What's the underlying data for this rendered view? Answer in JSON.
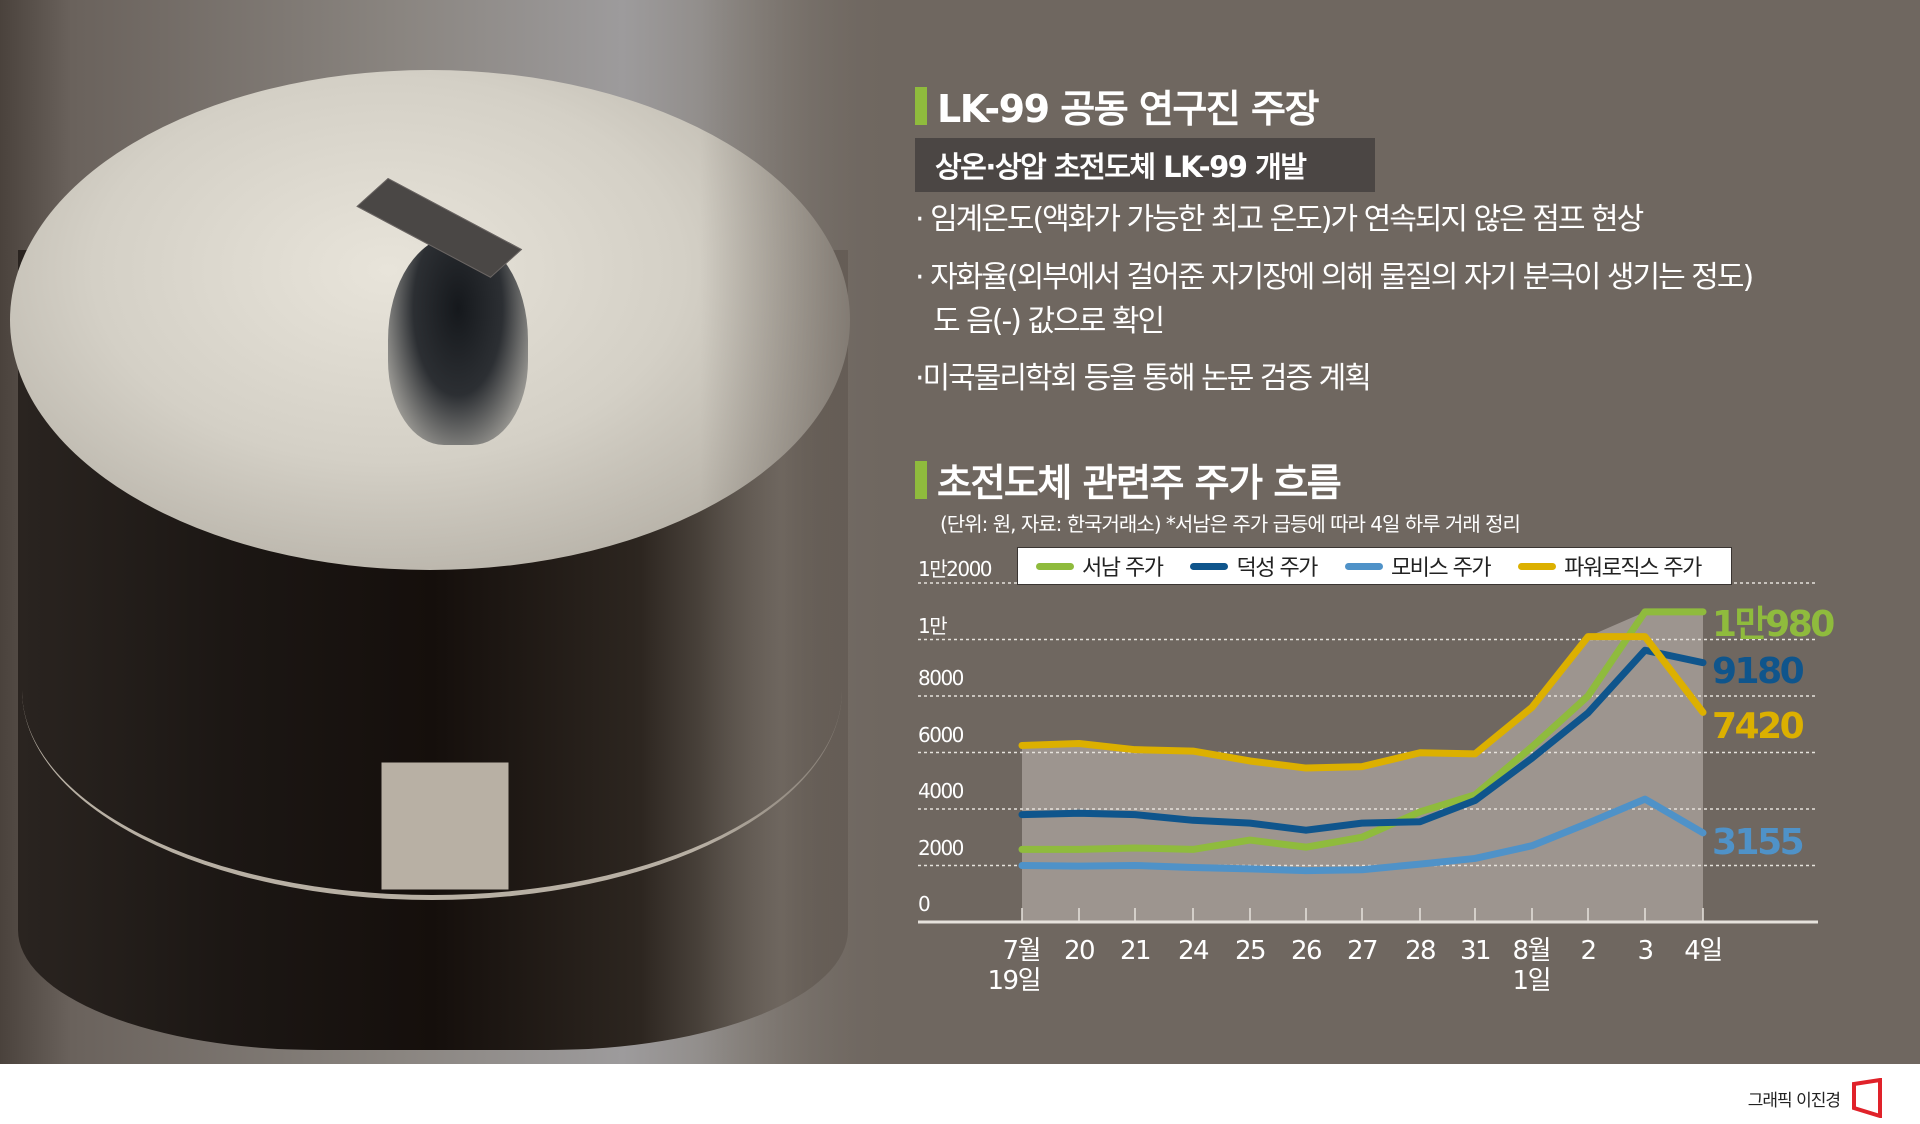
{
  "section1": {
    "title": "LK-99 공동 연구진 주장",
    "subhead": "상온·상압 초전도체 LK-99 개발",
    "bullets": [
      "· 임계온도(액화가 가능한 최고 온도)가 연속되지 않은 점프 현상",
      "· 자화율(외부에서 걸어준 자기장에 의해 물질의 자기 분극이 생기는 정도)",
      "  도 음(-) 값으로 확인",
      "·미국물리학회 등을 통해 논문 검증 계획"
    ]
  },
  "section2": {
    "title": "초전도체 관련주 주가 흐름",
    "note": "(단위: 원, 자료: 한국거래소)  *서남은 주가 급등에 따라 4일 하루 거래 정리"
  },
  "footer": {
    "credit": "그래픽 이진경"
  },
  "colors": {
    "background": "#6f6760",
    "accent_bar": "#8fbb3d",
    "plot_fill": "#9d958f",
    "seonam": "#8fbb3d",
    "deoksung": "#0f558c",
    "mobis": "#4f92c8",
    "powerlogics": "#dcb000",
    "logo": "#e0222a"
  },
  "chart_data": {
    "type": "line",
    "title": "초전도체 관련주 주가 흐름",
    "subtitle": "(단위: 원, 자료: 한국거래소) *서남은 주가 급등에 따라 4일 하루 거래 정리",
    "xlabel": "",
    "ylabel": "원",
    "categories": [
      "7월 19일",
      "20",
      "21",
      "24",
      "25",
      "26",
      "27",
      "28",
      "31",
      "8월 1일",
      "2",
      "3",
      "4일"
    ],
    "x_tick_lines": [
      [
        "7월",
        "19일"
      ],
      [
        "20"
      ],
      [
        "21"
      ],
      [
        "24"
      ],
      [
        "25"
      ],
      [
        "26"
      ],
      [
        "27"
      ],
      [
        "28"
      ],
      [
        "31"
      ],
      [
        "8월",
        "1일"
      ],
      [
        "2"
      ],
      [
        "3"
      ],
      [
        "4일"
      ]
    ],
    "y_ticks": [
      {
        "value": 0,
        "label": "0"
      },
      {
        "value": 2000,
        "label": "2000"
      },
      {
        "value": 4000,
        "label": "4000"
      },
      {
        "value": 6000,
        "label": "6000"
      },
      {
        "value": 8000,
        "label": "8000"
      },
      {
        "value": 10000,
        "label": "1만"
      },
      {
        "value": 12000,
        "label": "1만2000"
      }
    ],
    "ylim": [
      0,
      12000
    ],
    "grid": "horizontal dotted",
    "legend_position": "top",
    "series": [
      {
        "name": "서남 주가",
        "key": "seonam",
        "values": [
          2570,
          2570,
          2620,
          2570,
          2900,
          2650,
          3000,
          3900,
          4500,
          6200,
          8000,
          10980,
          10980
        ],
        "end_label": "1만980"
      },
      {
        "name": "덕성 주가",
        "key": "deoksung",
        "values": [
          3800,
          3850,
          3800,
          3600,
          3500,
          3250,
          3500,
          3550,
          4300,
          5800,
          7400,
          9620,
          9180
        ],
        "end_label": "9180"
      },
      {
        "name": "모비스 주가",
        "key": "mobis",
        "values": [
          2000,
          1980,
          2000,
          1930,
          1880,
          1820,
          1850,
          2050,
          2250,
          2700,
          3500,
          4350,
          3155
        ],
        "end_label": "3155"
      },
      {
        "name": "파워로직스 주가",
        "key": "powerlogics",
        "values": [
          6250,
          6320,
          6100,
          6050,
          5700,
          5450,
          5500,
          5990,
          5950,
          7600,
          10100,
          10100,
          7420
        ],
        "end_label": "7420"
      }
    ]
  }
}
